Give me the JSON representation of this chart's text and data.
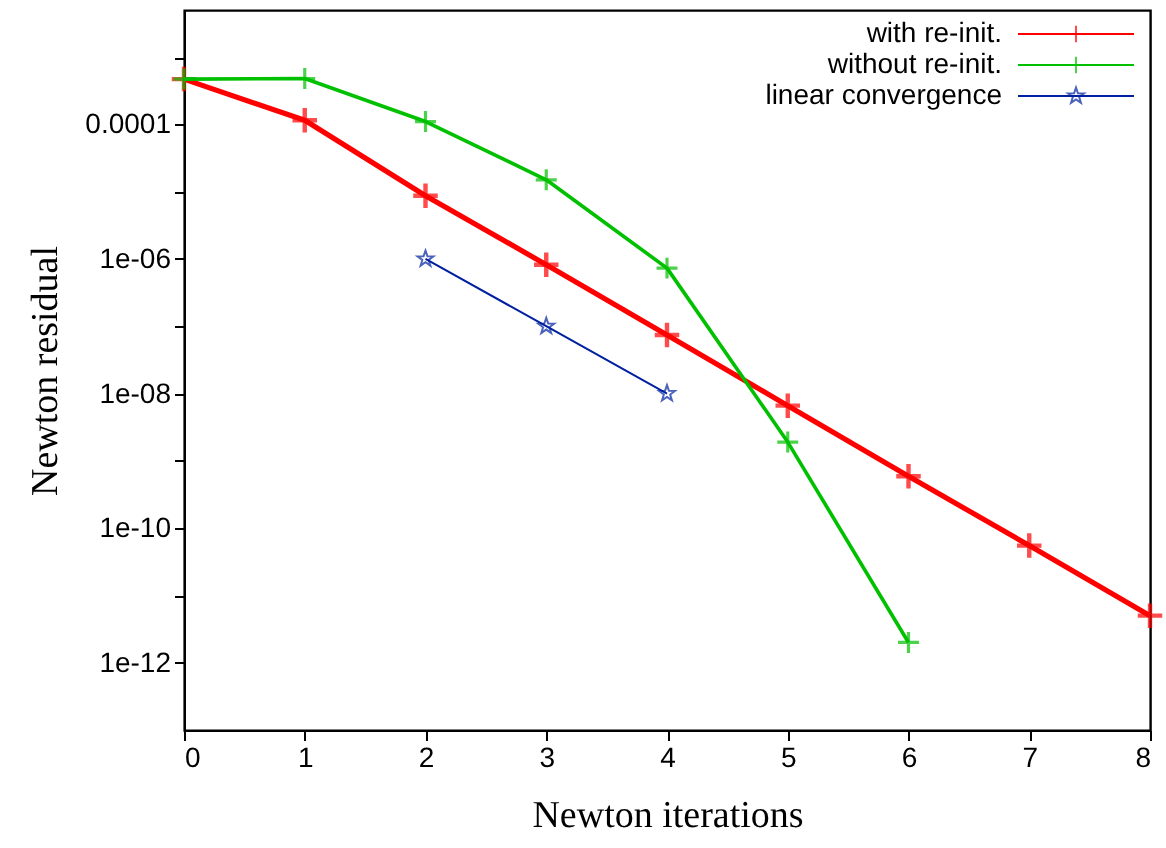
{
  "chart_data": {
    "type": "line",
    "xlabel": "Newton iterations",
    "ylabel": "Newton residual",
    "x": [
      0,
      1,
      2,
      3,
      4,
      5,
      6,
      7,
      8
    ],
    "series": [
      {
        "name": "with re-init.",
        "color": "#ff0000",
        "marker": "cross",
        "values": [
          0.00047,
          0.000115,
          8.7e-06,
          8.2e-07,
          7.4e-08,
          6.6e-09,
          5.9e-10,
          5.5e-11,
          5e-12
        ]
      },
      {
        "name": "without re-init.",
        "color": "#00c000",
        "marker": "cross",
        "values": [
          0.00047,
          0.00048,
          0.00011,
          1.5e-05,
          7.3e-07,
          1.9e-09,
          2e-12,
          null,
          null
        ]
      },
      {
        "name": "linear convergence",
        "color": "#0020a0",
        "marker": "star",
        "values": [
          null,
          null,
          1e-06,
          1e-07,
          1e-08,
          null,
          null,
          null,
          null
        ]
      }
    ],
    "log": "y",
    "xlim": [
      0,
      8
    ],
    "xticks": [
      0,
      1,
      2,
      3,
      4,
      5,
      6,
      7,
      8
    ],
    "ylim": [
      1e-13,
      0.005
    ],
    "yticks": [
      {
        "value": 1e-12,
        "label": "1e-12"
      },
      {
        "value": 1e-11,
        "label": null
      },
      {
        "value": 1e-10,
        "label": "1e-10"
      },
      {
        "value": 1e-09,
        "label": null
      },
      {
        "value": 1e-08,
        "label": "1e-08"
      },
      {
        "value": 1e-07,
        "label": null
      },
      {
        "value": 1e-06,
        "label": "1e-06"
      },
      {
        "value": 1e-05,
        "label": null
      },
      {
        "value": 0.0001,
        "label": "0.0001"
      },
      {
        "value": 0.001,
        "label": null
      }
    ],
    "grid": false,
    "legend": "top right"
  }
}
